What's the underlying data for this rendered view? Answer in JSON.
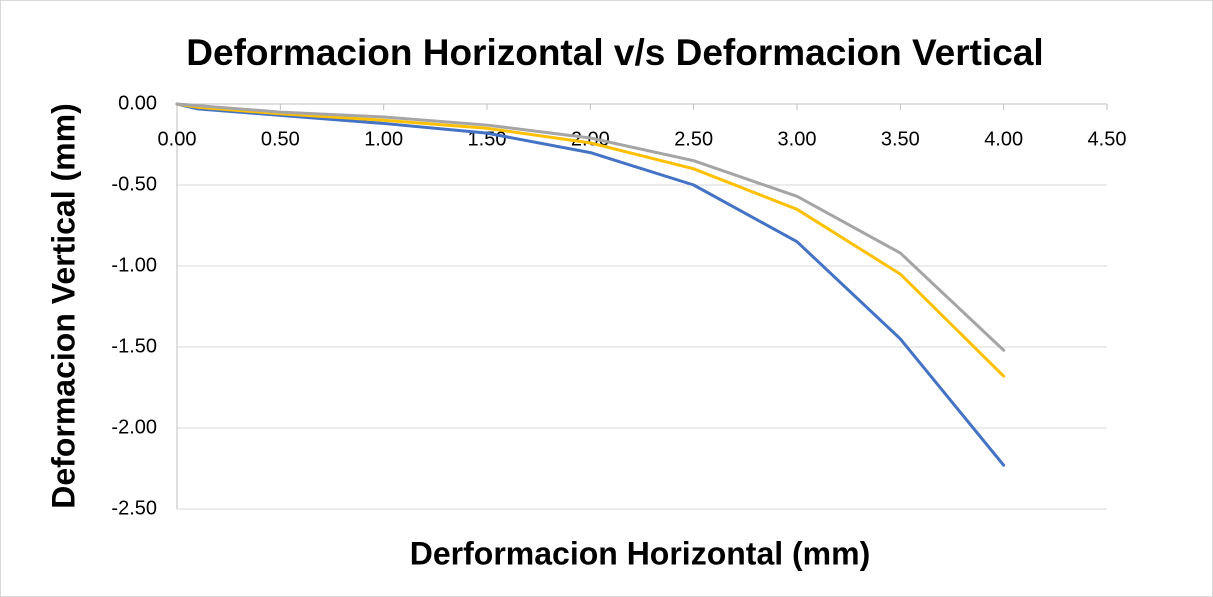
{
  "chart_data": {
    "type": "scatter",
    "title": "Deformacion Horizontal v/s Deformacion Vertical",
    "x_label": "Derformacion Horizontal (mm)",
    "y_label": "Deformacion Vertical (mm)",
    "x": [
      0,
      0.1,
      0.2,
      0.5,
      1.0,
      1.5,
      2.0,
      2.5,
      3.0,
      3.5,
      4.0
    ],
    "series": [
      {
        "color": "#4472c4",
        "values": [
          0,
          -0.03,
          -0.04,
          -0.07,
          -0.12,
          -0.18,
          -0.3,
          -0.5,
          -0.85,
          -1.45,
          -2.23
        ]
      },
      {
        "color": "#ffc000",
        "values": [
          0,
          -0.02,
          -0.03,
          -0.06,
          -0.1,
          -0.15,
          -0.24,
          -0.4,
          -0.65,
          -1.05,
          -1.68
        ]
      },
      {
        "color": "#a5a5a5",
        "values": [
          0,
          -0.01,
          -0.02,
          -0.05,
          -0.08,
          -0.13,
          -0.21,
          -0.35,
          -0.57,
          -0.92,
          -1.52
        ]
      }
    ],
    "xlim": [
      0,
      4.5
    ],
    "ylim": [
      -2.5,
      0
    ],
    "xticks": [
      {
        "value": 0,
        "label": "0.00"
      },
      {
        "value": 0.5,
        "label": "0.50"
      },
      {
        "value": 1.0,
        "label": "1.00"
      },
      {
        "value": 1.5,
        "label": "1.50"
      },
      {
        "value": 2.0,
        "label": "2.00"
      },
      {
        "value": 2.5,
        "label": "2.50"
      },
      {
        "value": 3.0,
        "label": "3.00"
      },
      {
        "value": 3.5,
        "label": "3.50"
      },
      {
        "value": 4.0,
        "label": "4.00"
      },
      {
        "value": 4.5,
        "label": "4.50"
      }
    ],
    "yticks": [
      {
        "value": 0,
        "label": "0.00"
      },
      {
        "value": -0.5,
        "label": "-0.50"
      },
      {
        "value": -1.0,
        "label": "-1.00"
      },
      {
        "value": -1.5,
        "label": "-1.50"
      },
      {
        "value": -2.0,
        "label": "-2.00"
      },
      {
        "value": -2.5,
        "label": "-2.50"
      }
    ],
    "grid": true
  }
}
